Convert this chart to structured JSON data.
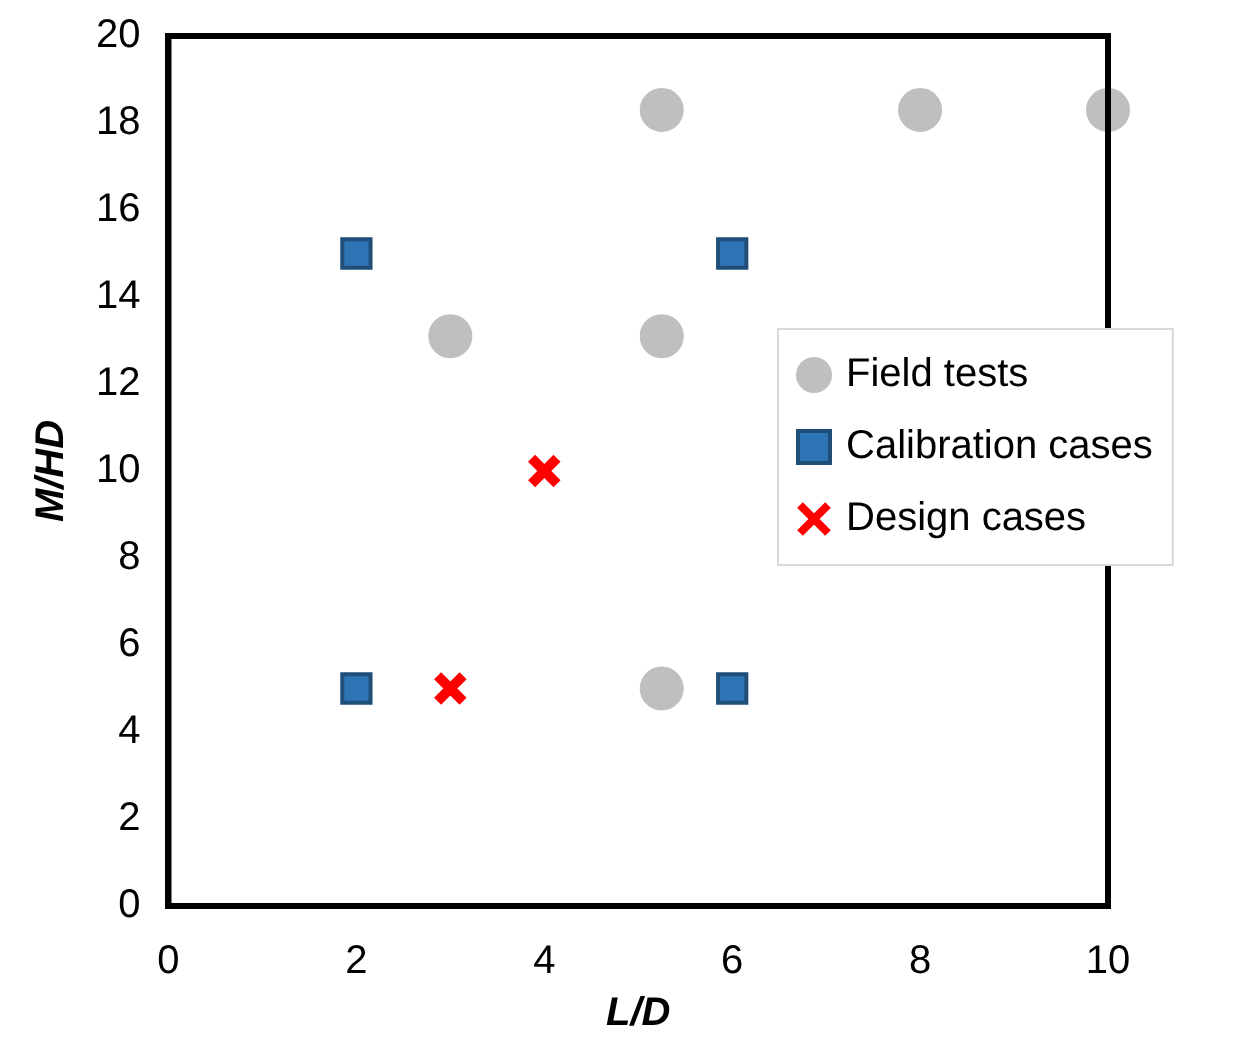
{
  "chart_data": {
    "type": "scatter",
    "xlabel": "L/D",
    "ylabel": "M/HD",
    "xlim": [
      0,
      10
    ],
    "ylim": [
      0,
      20
    ],
    "xticks": [
      0,
      2,
      4,
      6,
      8,
      10
    ],
    "yticks": [
      0,
      2,
      4,
      6,
      8,
      10,
      12,
      14,
      16,
      18,
      20
    ],
    "grid": false,
    "legend": "right",
    "series": [
      {
        "name": "Field tests",
        "color": "#bfbfbf",
        "marker": "circle",
        "x": [
          5.25,
          8,
          10,
          3,
          5.25,
          5.25
        ],
        "values": [
          18.3,
          18.3,
          18.3,
          13.1,
          13.1,
          5
        ]
      },
      {
        "name": "Calibration cases",
        "color": "#2e75b6",
        "marker": "square",
        "x": [
          2,
          6,
          2,
          6
        ],
        "values": [
          15,
          15,
          5,
          5
        ]
      },
      {
        "name": "Design cases",
        "color": "#ff0000",
        "marker": "cross",
        "x": [
          4,
          3
        ],
        "values": [
          10,
          5
        ]
      }
    ]
  }
}
